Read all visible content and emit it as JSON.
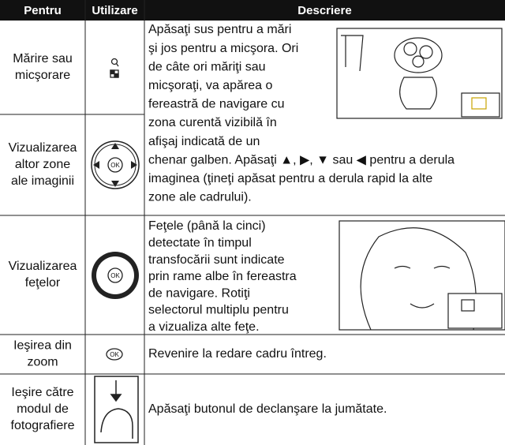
{
  "table": {
    "header": [
      "Pentru",
      "Utilizare",
      "Descriere"
    ],
    "rows": [
      {
        "pentru": [
          "Mărire sau",
          "micşorare"
        ],
        "descriere": [
          "Apăsaţi sus pentru a mări",
          "şi jos pentru a micşora. Ori",
          "de câte ori măriţi sau",
          "micşoraţi, va apărea o",
          "fereastră de navigare cu",
          "zona curentă vizibilă în",
          "afişaj indicată de un",
          "chenar galben. Apăsaţi ▲, ▶, ▼ sau ◀ pentru a derula",
          "imaginea (ţineţi apăsat pentru a derula rapid la alte",
          "zone ale cadrului)."
        ]
      },
      {
        "pentru": [
          "Vizualizarea",
          "altor zone",
          "ale imaginii"
        ]
      },
      {
        "pentru": [
          "Vizualizarea",
          "feţelor"
        ],
        "descriere": [
          "Feţele (până la cinci)",
          "detectate în timpul",
          "transfocării sunt indicate",
          "prin rame albe în fereastra",
          "de navigare. Rotiţi",
          "selectorul multiplu pentru",
          "a vizualiza alte feţe."
        ]
      },
      {
        "pentru": [
          "Ieşirea din",
          "zoom"
        ],
        "descriere": [
          "Revenire la redare cadru întreg."
        ]
      },
      {
        "pentru": [
          "Ieşire către",
          "modul de",
          "fotografiere"
        ],
        "descriere": [
          "Apăsaţi butonul de declanşare la jumătate."
        ]
      }
    ]
  }
}
